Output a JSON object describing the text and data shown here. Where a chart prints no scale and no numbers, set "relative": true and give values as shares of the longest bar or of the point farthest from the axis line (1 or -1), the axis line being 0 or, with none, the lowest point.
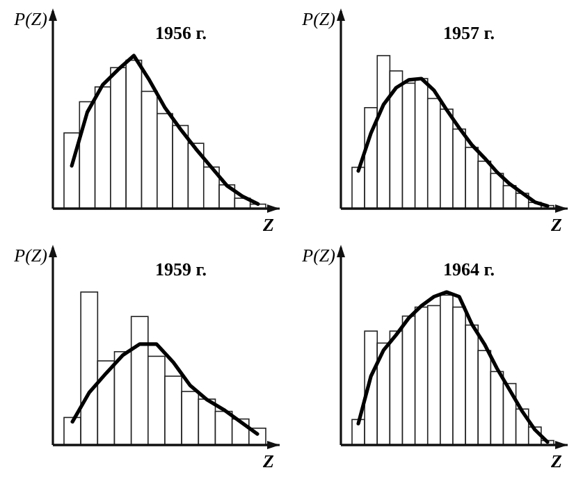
{
  "chart_data": [
    {
      "type": "bar",
      "title": "1956 г.",
      "xlabel": "Z",
      "ylabel": "P(Z)",
      "relative": true,
      "categories": [
        null,
        null,
        null,
        null,
        null,
        null,
        null,
        null,
        null,
        null,
        null,
        null,
        null
      ],
      "series": [
        {
          "color": "#ffffff",
          "values": [
            0.51,
            0.72,
            0.82,
            0.95,
            1.0,
            0.79,
            0.64,
            0.56,
            0.44,
            0.28,
            0.16,
            0.07,
            0.03
          ]
        }
      ]
    },
    {
      "type": "line",
      "relative": true,
      "categories": [
        null,
        null,
        null,
        null,
        null,
        null,
        null,
        null,
        null,
        null,
        null,
        null,
        null
      ],
      "series": [
        {
          "color": "#000000",
          "values": [
            0.28,
            0.63,
            0.81,
            0.91,
            1.0,
            0.84,
            0.66,
            0.52,
            0.39,
            0.27,
            0.15,
            0.08,
            0.03
          ]
        }
      ]
    },
    {
      "type": "bar",
      "title": "1957 г.",
      "xlabel": "Z",
      "ylabel": "P(Z)",
      "relative": true,
      "categories": [
        null,
        null,
        null,
        null,
        null,
        null,
        null,
        null,
        null,
        null,
        null,
        null,
        null,
        null,
        null,
        null
      ],
      "series": [
        {
          "color": "#ffffff",
          "values": [
            0.27,
            0.66,
            1.0,
            0.9,
            0.82,
            0.85,
            0.72,
            0.65,
            0.52,
            0.4,
            0.31,
            0.23,
            0.15,
            0.1,
            0.04,
            0.02
          ]
        }
      ]
    },
    {
      "type": "line",
      "relative": true,
      "categories": [
        null,
        null,
        null,
        null,
        null,
        null,
        null,
        null,
        null,
        null,
        null,
        null,
        null,
        null,
        null,
        null
      ],
      "series": [
        {
          "color": "#000000",
          "values": [
            0.29,
            0.58,
            0.8,
            0.93,
            0.99,
            1.0,
            0.91,
            0.76,
            0.62,
            0.49,
            0.39,
            0.28,
            0.19,
            0.12,
            0.05,
            0.02
          ]
        }
      ]
    },
    {
      "type": "bar",
      "title": "1959 г.",
      "xlabel": "Z",
      "ylabel": "P(Z)",
      "relative": true,
      "categories": [
        null,
        null,
        null,
        null,
        null,
        null,
        null,
        null,
        null,
        null,
        null,
        null
      ],
      "series": [
        {
          "color": "#ffffff",
          "values": [
            0.18,
            1.0,
            0.55,
            0.61,
            0.84,
            0.58,
            0.45,
            0.35,
            0.3,
            0.22,
            0.17,
            0.11
          ]
        }
      ]
    },
    {
      "type": "line",
      "relative": true,
      "categories": [
        null,
        null,
        null,
        null,
        null,
        null,
        null,
        null,
        null,
        null,
        null,
        null
      ],
      "series": [
        {
          "color": "#000000",
          "values": [
            0.23,
            0.52,
            0.71,
            0.89,
            1.0,
            1.0,
            0.82,
            0.59,
            0.45,
            0.35,
            0.23,
            0.11
          ]
        }
      ]
    },
    {
      "type": "bar",
      "title": "1964 г.",
      "xlabel": "Z",
      "ylabel": "P(Z)",
      "relative": true,
      "categories": [
        null,
        null,
        null,
        null,
        null,
        null,
        null,
        null,
        null,
        null,
        null,
        null,
        null,
        null,
        null,
        null
      ],
      "series": [
        {
          "color": "#ffffff",
          "values": [
            0.17,
            0.76,
            0.68,
            0.76,
            0.86,
            0.92,
            0.93,
            1.0,
            0.92,
            0.8,
            0.63,
            0.49,
            0.41,
            0.24,
            0.12,
            0.03
          ]
        }
      ]
    },
    {
      "type": "line",
      "relative": true,
      "categories": [
        null,
        null,
        null,
        null,
        null,
        null,
        null,
        null,
        null,
        null,
        null,
        null,
        null,
        null,
        null,
        null
      ],
      "series": [
        {
          "color": "#000000",
          "values": [
            0.14,
            0.45,
            0.62,
            0.72,
            0.83,
            0.91,
            0.97,
            1.0,
            0.97,
            0.79,
            0.66,
            0.5,
            0.36,
            0.22,
            0.1,
            0.02
          ]
        }
      ]
    }
  ]
}
